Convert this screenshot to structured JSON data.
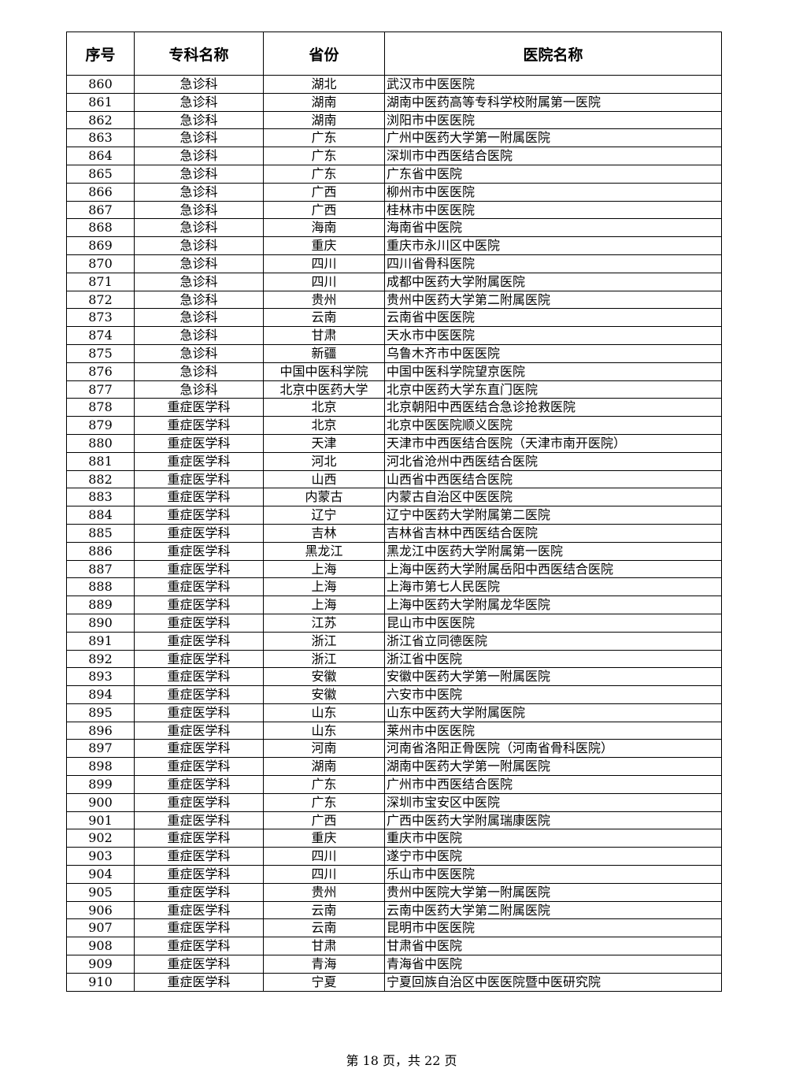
{
  "table": {
    "headers": [
      "序号",
      "专科名称",
      "省份",
      "医院名称"
    ],
    "rows": [
      [
        "860",
        "急诊科",
        "湖北",
        "武汉市中医医院"
      ],
      [
        "861",
        "急诊科",
        "湖南",
        "湖南中医药高等专科学校附属第一医院"
      ],
      [
        "862",
        "急诊科",
        "湖南",
        "浏阳市中医医院"
      ],
      [
        "863",
        "急诊科",
        "广东",
        "广州中医药大学第一附属医院"
      ],
      [
        "864",
        "急诊科",
        "广东",
        "深圳市中西医结合医院"
      ],
      [
        "865",
        "急诊科",
        "广东",
        "广东省中医院"
      ],
      [
        "866",
        "急诊科",
        "广西",
        "柳州市中医医院"
      ],
      [
        "867",
        "急诊科",
        "广西",
        "桂林市中医医院"
      ],
      [
        "868",
        "急诊科",
        "海南",
        "海南省中医院"
      ],
      [
        "869",
        "急诊科",
        "重庆",
        "重庆市永川区中医院"
      ],
      [
        "870",
        "急诊科",
        "四川",
        "四川省骨科医院"
      ],
      [
        "871",
        "急诊科",
        "四川",
        "成都中医药大学附属医院"
      ],
      [
        "872",
        "急诊科",
        "贵州",
        "贵州中医药大学第二附属医院"
      ],
      [
        "873",
        "急诊科",
        "云南",
        "云南省中医医院"
      ],
      [
        "874",
        "急诊科",
        "甘肃",
        "天水市中医医院"
      ],
      [
        "875",
        "急诊科",
        "新疆",
        "乌鲁木齐市中医医院"
      ],
      [
        "876",
        "急诊科",
        "中国中医科学院",
        "中国中医科学院望京医院"
      ],
      [
        "877",
        "急诊科",
        "北京中医药大学",
        "北京中医药大学东直门医院"
      ],
      [
        "878",
        "重症医学科",
        "北京",
        "北京朝阳中西医结合急诊抢救医院"
      ],
      [
        "879",
        "重症医学科",
        "北京",
        "北京中医医院顺义医院"
      ],
      [
        "880",
        "重症医学科",
        "天津",
        "天津市中西医结合医院（天津市南开医院）"
      ],
      [
        "881",
        "重症医学科",
        "河北",
        "河北省沧州中西医结合医院"
      ],
      [
        "882",
        "重症医学科",
        "山西",
        "山西省中西医结合医院"
      ],
      [
        "883",
        "重症医学科",
        "内蒙古",
        "内蒙古自治区中医医院"
      ],
      [
        "884",
        "重症医学科",
        "辽宁",
        "辽宁中医药大学附属第二医院"
      ],
      [
        "885",
        "重症医学科",
        "吉林",
        "吉林省吉林中西医结合医院"
      ],
      [
        "886",
        "重症医学科",
        "黑龙江",
        "黑龙江中医药大学附属第一医院"
      ],
      [
        "887",
        "重症医学科",
        "上海",
        "上海中医药大学附属岳阳中西医结合医院"
      ],
      [
        "888",
        "重症医学科",
        "上海",
        "上海市第七人民医院"
      ],
      [
        "889",
        "重症医学科",
        "上海",
        "上海中医药大学附属龙华医院"
      ],
      [
        "890",
        "重症医学科",
        "江苏",
        "昆山市中医医院"
      ],
      [
        "891",
        "重症医学科",
        "浙江",
        "浙江省立同德医院"
      ],
      [
        "892",
        "重症医学科",
        "浙江",
        "浙江省中医院"
      ],
      [
        "893",
        "重症医学科",
        "安徽",
        "安徽中医药大学第一附属医院"
      ],
      [
        "894",
        "重症医学科",
        "安徽",
        "六安市中医院"
      ],
      [
        "895",
        "重症医学科",
        "山东",
        "山东中医药大学附属医院"
      ],
      [
        "896",
        "重症医学科",
        "山东",
        "莱州市中医医院"
      ],
      [
        "897",
        "重症医学科",
        "河南",
        "河南省洛阳正骨医院（河南省骨科医院）"
      ],
      [
        "898",
        "重症医学科",
        "湖南",
        "湖南中医药大学第一附属医院"
      ],
      [
        "899",
        "重症医学科",
        "广东",
        "广州市中西医结合医院"
      ],
      [
        "900",
        "重症医学科",
        "广东",
        "深圳市宝安区中医院"
      ],
      [
        "901",
        "重症医学科",
        "广西",
        "广西中医药大学附属瑞康医院"
      ],
      [
        "902",
        "重症医学科",
        "重庆",
        "重庆市中医院"
      ],
      [
        "903",
        "重症医学科",
        "四川",
        "遂宁市中医院"
      ],
      [
        "904",
        "重症医学科",
        "四川",
        "乐山市中医医院"
      ],
      [
        "905",
        "重症医学科",
        "贵州",
        "贵州中医院大学第一附属医院"
      ],
      [
        "906",
        "重症医学科",
        "云南",
        "云南中医药大学第二附属医院"
      ],
      [
        "907",
        "重症医学科",
        "云南",
        "昆明市中医医院"
      ],
      [
        "908",
        "重症医学科",
        "甘肃",
        "甘肃省中医院"
      ],
      [
        "909",
        "重症医学科",
        "青海",
        "青海省中医院"
      ],
      [
        "910",
        "重症医学科",
        "宁夏",
        "宁夏回族自治区中医医院暨中医研究院"
      ]
    ]
  },
  "footer": {
    "page_label": "第 18 页，共 22 页"
  }
}
